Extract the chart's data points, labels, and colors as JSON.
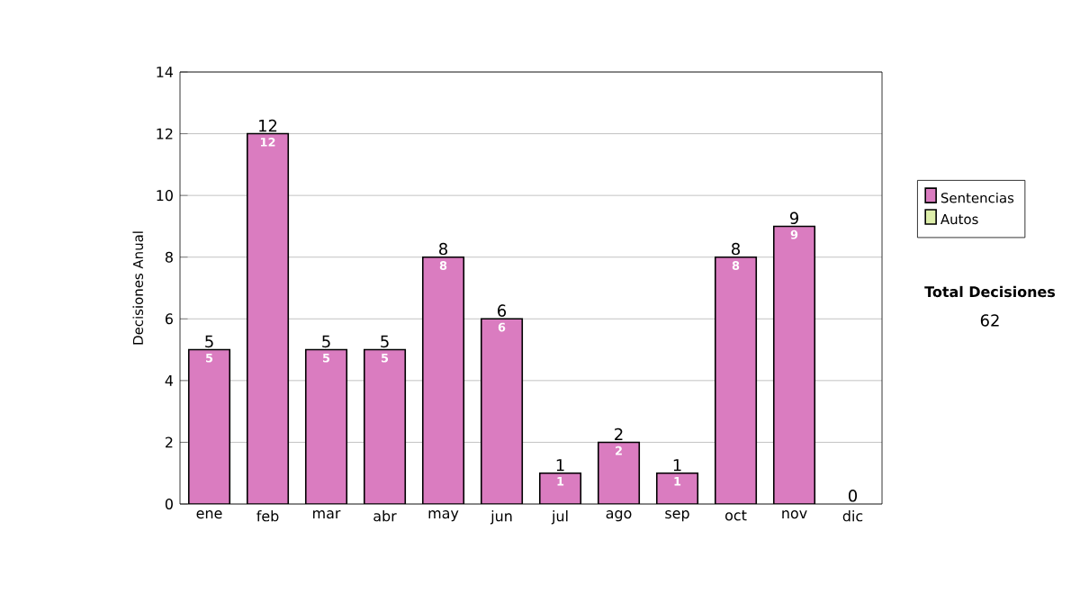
{
  "chart_data": {
    "type": "bar",
    "ylabel": "Decisiones Anual",
    "categories": [
      "ene",
      "feb",
      "mar",
      "abr",
      "may",
      "jun",
      "jul",
      "ago",
      "sep",
      "oct",
      "nov",
      "dic"
    ],
    "series": [
      {
        "name": "Sentencias",
        "color": "#da7cc0",
        "values": [
          5,
          12,
          5,
          5,
          8,
          6,
          1,
          2,
          1,
          8,
          9,
          0
        ],
        "value_labels": [
          "5",
          "12",
          "5",
          "5",
          "8",
          "6",
          "1",
          "2",
          "1",
          "8",
          "9",
          null
        ]
      },
      {
        "name": "Autos",
        "color": "#ddeeaa",
        "values": [
          0,
          0,
          0,
          0,
          0,
          0,
          0,
          0,
          0,
          0,
          0,
          0
        ]
      }
    ],
    "stacked": true,
    "totals": [
      "5",
      "12",
      "5",
      "5",
      "8",
      "6",
      "1",
      "2",
      "1",
      "8",
      "9",
      "0"
    ],
    "ylim": [
      0,
      14
    ],
    "yticks": [
      0,
      2,
      4,
      6,
      8,
      10,
      12,
      14
    ],
    "grid": "y",
    "legend": "right",
    "annotations": [
      "Total Decisiones",
      "62"
    ]
  }
}
